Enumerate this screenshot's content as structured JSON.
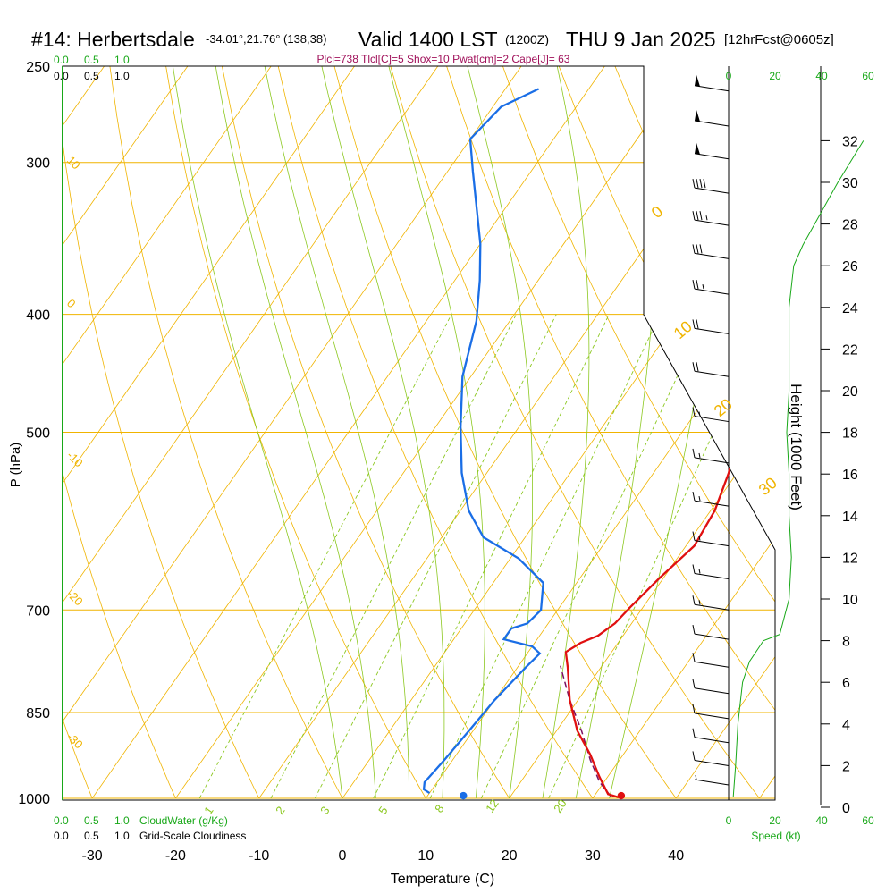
{
  "title": {
    "station": "#14: Herbertsdale",
    "coords": "-34.01°,21.76° (138,38)",
    "valid": "Valid 1400 LST",
    "zulu": "(1200Z)",
    "date": "THU 9 Jan 2025",
    "fcst": "[12hrFcst@0605z]"
  },
  "params_line": "Plcl=738 Tlcl[C]=5 Shox=10 Pwat[cm]=2 Cape[J]= 63",
  "colors": {
    "temperature": "#e01010",
    "dewpoint": "#1a6ee6",
    "parcel": "#7a1060",
    "isobar": "#f0b400",
    "dry_adiabat": "#f0b400",
    "moist_adiabat": "#8cc820",
    "mixing_ratio": "#8cc820",
    "green_text": "#18a818",
    "params_text": "#a0105a"
  },
  "axes": {
    "xlabel": "Temperature (C)",
    "ylabel": "P (hPa)",
    "x_ticks": [
      -30,
      -20,
      -10,
      0,
      10,
      20,
      30,
      40
    ],
    "p_ticks": [
      250,
      300,
      400,
      500,
      700,
      850,
      1000
    ],
    "height_label": "Height (1000 Feet)",
    "height_ticks": [
      0,
      2,
      4,
      6,
      8,
      10,
      12,
      14,
      16,
      18,
      20,
      22,
      24,
      26,
      28,
      30,
      32
    ],
    "speed_label": "Speed (kt)",
    "speed_ticks": [
      0,
      20,
      40,
      60
    ]
  },
  "cloud_scales": {
    "top_green": [
      "0.0",
      "0.5",
      "1.0"
    ],
    "top_black": [
      "0.0",
      "0.5",
      "1.0"
    ],
    "bottom_green": [
      "0.0",
      "0.5",
      "1.0"
    ],
    "bottom_black": [
      "0.0",
      "0.5",
      "1.0"
    ],
    "cloudwater_label": "CloudWater (g/Kg)",
    "cloudiness_label": "Grid-Scale Cloudiness"
  },
  "isotherm_labels": [
    {
      "text": "0",
      "t": 0
    },
    {
      "text": "10",
      "t": 10
    },
    {
      "text": "20",
      "t": 20
    },
    {
      "text": "30",
      "t": 30
    }
  ],
  "dry_adiabat_labels": [
    "10",
    "0",
    "-10",
    "-20",
    "-30"
  ],
  "mixing_ratio_labels": [
    "1",
    "2",
    "3",
    "5",
    "8",
    "12",
    "20"
  ],
  "chart_data": {
    "type": "line",
    "title": "#14: Herbertsdale -34.01°,21.76° (138,38) Valid 1400 LST (1200Z) THU 9 Jan 2025 [12hrFcst@0605z]",
    "xlabel": "Temperature (C)",
    "ylabel": "P (hPa)",
    "xlim": [
      -33,
      37
    ],
    "plim": [
      250,
      1000
    ],
    "series": [
      {
        "name": "Temperature",
        "points": [
          [
            33,
            998
          ],
          [
            31.5,
            992
          ],
          [
            29,
            960
          ],
          [
            26,
            920
          ],
          [
            22.5,
            880
          ],
          [
            19,
            830
          ],
          [
            16,
            780
          ],
          [
            14.5,
            758
          ],
          [
            15.5,
            745
          ],
          [
            17,
            735
          ],
          [
            18,
            718
          ],
          [
            18.5,
            695
          ],
          [
            19.5,
            660
          ],
          [
            21,
            620
          ],
          [
            20.5,
            580
          ],
          [
            19,
            540
          ],
          [
            17,
            505
          ],
          [
            14,
            470
          ],
          [
            10,
            440
          ],
          [
            6,
            410
          ],
          [
            1,
            375
          ],
          [
            -4,
            345
          ],
          [
            -9,
            310
          ],
          [
            -14,
            278
          ],
          [
            -18,
            261
          ]
        ]
      },
      {
        "name": "Dewpoint",
        "points": [
          [
            10,
            990
          ],
          [
            9,
            983
          ],
          [
            8.5,
            970
          ],
          [
            9,
            930
          ],
          [
            9.5,
            880
          ],
          [
            10,
            830
          ],
          [
            11,
            780
          ],
          [
            11.5,
            760
          ],
          [
            10,
            750
          ],
          [
            6,
            740
          ],
          [
            6,
            725
          ],
          [
            7.5,
            718
          ],
          [
            8,
            700
          ],
          [
            6,
            665
          ],
          [
            1,
            635
          ],
          [
            -5,
            610
          ],
          [
            -9,
            580
          ],
          [
            -13,
            540
          ],
          [
            -17,
            495
          ],
          [
            -21,
            450
          ],
          [
            -24,
            405
          ],
          [
            -27,
            375
          ],
          [
            -30,
            350
          ],
          [
            -37,
            305
          ],
          [
            -40,
            287
          ],
          [
            -39,
            270
          ],
          [
            -36,
            261
          ]
        ]
      },
      {
        "name": "Parcel",
        "points": [
          [
            32,
            996
          ],
          [
            29.5,
            970
          ],
          [
            26.5,
            930
          ],
          [
            23,
            880
          ],
          [
            19,
            830
          ],
          [
            15,
            778
          ]
        ]
      }
    ],
    "surface": {
      "temperature": 33,
      "dewpoint": 14.5,
      "pressure": 995
    },
    "wind_barbs": [
      {
        "pressure": 262,
        "speed_kt": 50
      },
      {
        "pressure": 280,
        "speed_kt": 50
      },
      {
        "pressure": 298,
        "speed_kt": 50
      },
      {
        "pressure": 318,
        "speed_kt": 40
      },
      {
        "pressure": 338,
        "speed_kt": 35
      },
      {
        "pressure": 360,
        "speed_kt": 30
      },
      {
        "pressure": 385,
        "speed_kt": 25
      },
      {
        "pressure": 415,
        "speed_kt": 20
      },
      {
        "pressure": 450,
        "speed_kt": 20
      },
      {
        "pressure": 490,
        "speed_kt": 15
      },
      {
        "pressure": 530,
        "speed_kt": 15
      },
      {
        "pressure": 575,
        "speed_kt": 15
      },
      {
        "pressure": 620,
        "speed_kt": 15
      },
      {
        "pressure": 660,
        "speed_kt": 15
      },
      {
        "pressure": 700,
        "speed_kt": 15
      },
      {
        "pressure": 740,
        "speed_kt": 10
      },
      {
        "pressure": 780,
        "speed_kt": 10
      },
      {
        "pressure": 820,
        "speed_kt": 10
      },
      {
        "pressure": 860,
        "speed_kt": 10
      },
      {
        "pressure": 900,
        "speed_kt": 10
      },
      {
        "pressure": 940,
        "speed_kt": 10
      },
      {
        "pressure": 975,
        "speed_kt": 5
      }
    ],
    "wind_speed_profile": {
      "xlim_kt": [
        0,
        60
      ],
      "height_kft": [
        0.5,
        2,
        4,
        6,
        7,
        8,
        8.3,
        10,
        12,
        14,
        16,
        18,
        20,
        22,
        24,
        25,
        26,
        27,
        28,
        30,
        32
      ],
      "speed_kt": [
        2,
        3,
        4,
        6,
        9,
        15,
        22,
        26,
        27,
        26,
        26,
        25,
        26,
        26,
        26,
        27,
        28,
        32,
        37,
        47,
        58
      ]
    }
  }
}
